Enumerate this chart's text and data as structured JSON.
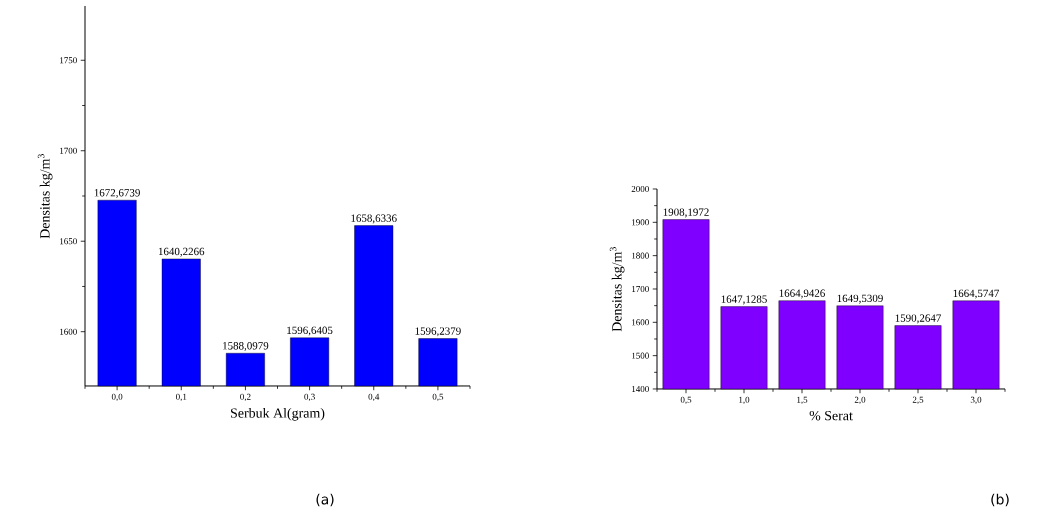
{
  "chart_data": [
    {
      "type": "bar",
      "xlabel": "Serbuk Al(gram)",
      "ylabel": "Densitas kg/m$^{3}$",
      "categories": [
        "0,0",
        "0,1",
        "0,2",
        "0,3",
        "0,4",
        "0,5"
      ],
      "values": [
        1672.6739,
        1640.2266,
        1588.0979,
        1596.6405,
        1658.6336,
        1596.2379
      ],
      "value_labels": [
        "1672,6739",
        "1640,2266",
        "1588,0979",
        "1596,6405",
        "1658,6336",
        "1596,2379"
      ],
      "color": "#0000ff",
      "ylim": [
        1570,
        1780
      ],
      "yticks": [
        1600,
        1650,
        1700,
        1750
      ],
      "grid": false,
      "annotations": [
        "(a)"
      ]
    },
    {
      "type": "bar",
      "xlabel": "% Serat",
      "ylabel": "Densitas kg/m$^{3}$",
      "categories": [
        "0,5",
        "1,0",
        "1,5",
        "2,0",
        "2,5",
        "3,0"
      ],
      "values": [
        1908.1972,
        1647.1285,
        1664.9426,
        1649.5309,
        1590.2647,
        1664.5747
      ],
      "value_labels": [
        "1908,1972",
        "1647,1285",
        "1664,9426",
        "1649,5309",
        "1590,2647",
        "1664,5747"
      ],
      "color": "#7f00ff",
      "ylim": [
        1400,
        2000
      ],
      "yticks": [
        1400,
        1500,
        1600,
        1700,
        1800,
        1900,
        2000
      ],
      "grid": false,
      "annotations": [
        "(b)"
      ]
    }
  ]
}
